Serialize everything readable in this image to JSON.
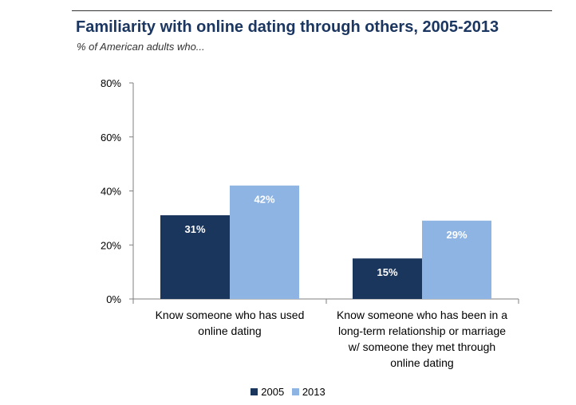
{
  "title": "Familiarity with online dating through others, 2005-2013",
  "subtitle": "% of American adults who...",
  "colors": {
    "s2005": "#1b365d",
    "s2013": "#8eb4e3"
  },
  "chart_data": {
    "type": "bar",
    "categories": [
      [
        "Know someone who has used",
        "online dating"
      ],
      [
        "Know someone who has been in a",
        "long-term relationship or marriage",
        "w/ someone they met through",
        "online dating"
      ]
    ],
    "series": [
      {
        "name": "2005",
        "values": [
          31,
          15
        ],
        "labels": [
          "31%",
          "15%"
        ]
      },
      {
        "name": "2013",
        "values": [
          42,
          29
        ],
        "labels": [
          "42%",
          "29%"
        ]
      }
    ],
    "yticks": [
      0,
      20,
      40,
      60,
      80
    ],
    "ytick_labels": [
      "0%",
      "20%",
      "40%",
      "60%",
      "80%"
    ],
    "ylim": [
      0,
      80
    ],
    "legend": "bottom"
  }
}
